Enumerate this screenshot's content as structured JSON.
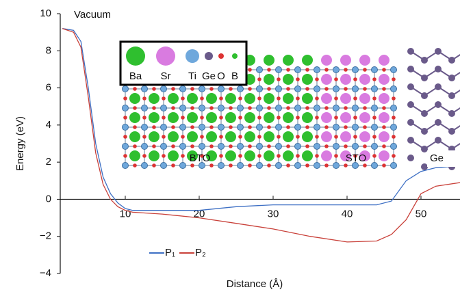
{
  "chart_data": {
    "type": "line",
    "xlabel": "Distance (Å)",
    "ylabel": "Energy (eV)",
    "x": [
      1.5,
      3,
      4,
      5,
      6,
      7,
      8,
      9,
      10,
      11,
      15,
      20,
      25,
      30,
      35,
      40,
      44,
      46,
      48,
      50,
      52,
      55.3
    ],
    "series": [
      {
        "name": "P₁",
        "color": "#3d6fc4",
        "values": [
          9.2,
          9.1,
          8.5,
          6,
          3,
          1.2,
          0.3,
          -0.2,
          -0.5,
          -0.6,
          -0.6,
          -0.6,
          -0.4,
          -0.3,
          -0.3,
          -0.3,
          -0.3,
          -0.1,
          1.0,
          1.5,
          1.7,
          1.8
        ]
      },
      {
        "name": "P₂",
        "color": "#c9413a",
        "values": [
          9.2,
          9.0,
          8.2,
          5.5,
          2.5,
          0.8,
          0,
          -0.4,
          -0.6,
          -0.7,
          -0.8,
          -1.0,
          -1.3,
          -1.6,
          -2.0,
          -2.3,
          -2.25,
          -1.9,
          -1.1,
          0.3,
          0.7,
          0.9
        ]
      }
    ],
    "xlim": [
      1.2,
      55.3
    ],
    "xticks": [
      10,
      20,
      30,
      40,
      50
    ],
    "ylim": [
      -4,
      10
    ],
    "yticks": [
      {
        "value": -4,
        "label": "−4"
      },
      {
        "value": -2,
        "label": "−2"
      },
      0,
      2,
      4,
      6,
      8,
      10
    ],
    "annotations": [
      "Vacuum",
      "BTO",
      "STO",
      "Ge"
    ],
    "structure_legend": [
      "Ba",
      "Sr",
      "Ti",
      "Ge",
      "O",
      "B"
    ]
  }
}
